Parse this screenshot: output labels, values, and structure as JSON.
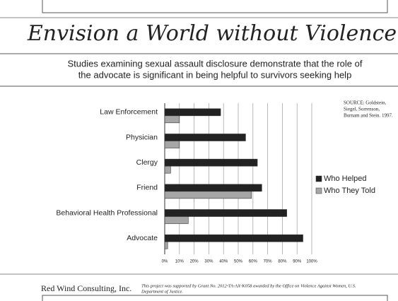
{
  "slide": {
    "title": "Envision a World without Violence",
    "subtitle": [
      "Studies examining sexual assault disclosure demonstrate that the role of",
      "the advocate is significant in being helpful to survivors seeking help"
    ],
    "source": [
      "SOURCE: Goldstein,",
      "Siegel, Sorrenson,",
      "Burnam and Stein. 1997."
    ],
    "logo": "Red Wind Consulting, Inc.",
    "footer": [
      "This project was supported by Grant No. 2012-TA-AX-K058 awarded by the Office on Violence Against Women, U.S.",
      "Department of Justice."
    ]
  },
  "chart_data": {
    "type": "bar",
    "orientation": "horizontal",
    "categories": [
      "Law Enforcement",
      "Physician",
      "Clergy",
      "Friend",
      "Behavioral Health Professional",
      "Advocate"
    ],
    "series": [
      {
        "name": "Who Helped",
        "color": "#222222",
        "values": [
          38,
          55,
          63,
          66,
          83,
          94
        ]
      },
      {
        "name": "Who They Told",
        "color": "#a6a6a6",
        "values": [
          10,
          10,
          4,
          59,
          16,
          2
        ]
      }
    ],
    "xlim": [
      0,
      100
    ],
    "xticks": [
      {
        "value": 0,
        "label": "0%"
      },
      {
        "value": 10,
        "label": "10%"
      },
      {
        "value": 20,
        "label": "20%"
      },
      {
        "value": 30,
        "label": "30%"
      },
      {
        "value": 40,
        "label": "40%"
      },
      {
        "value": 50,
        "label": "50%"
      },
      {
        "value": 60,
        "label": "60%"
      },
      {
        "value": 70,
        "label": "70%"
      },
      {
        "value": 80,
        "label": "80%"
      },
      {
        "value": 90,
        "label": "90%"
      },
      {
        "value": 100,
        "label": "100%"
      }
    ],
    "grid": true
  }
}
